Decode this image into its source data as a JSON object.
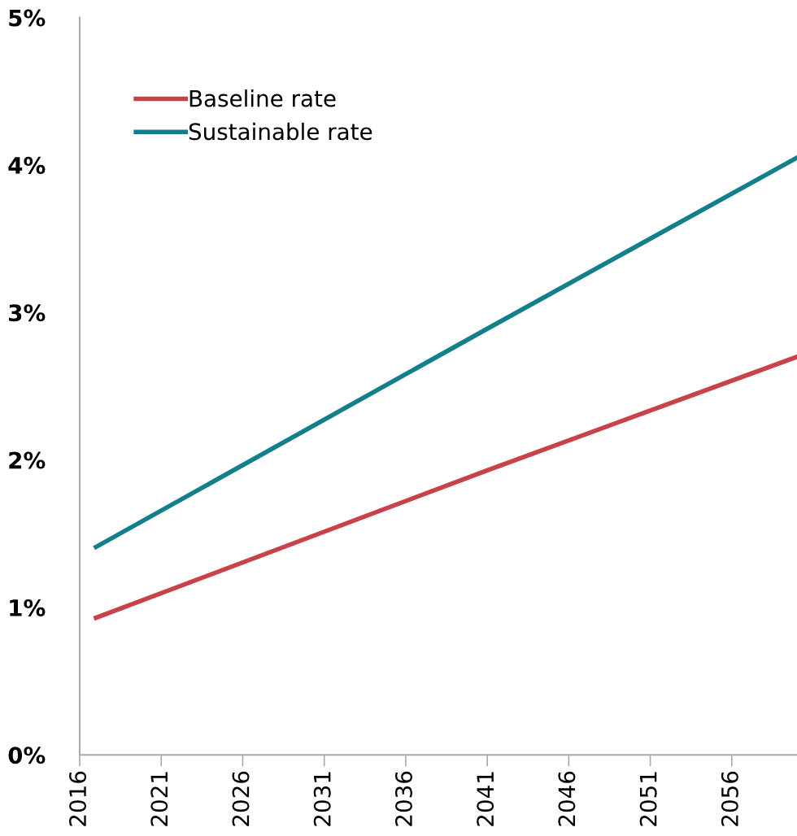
{
  "chart_data": {
    "type": "line",
    "series": [
      {
        "name": "Baseline rate",
        "color": "#c8424a",
        "x": [
          2017,
          2041,
          2060
        ],
        "values": [
          0.93,
          1.93,
          2.7
        ]
      },
      {
        "name": "Sustainable rate",
        "color": "#127f8a",
        "x": [
          2017,
          2041,
          2060
        ],
        "values": [
          1.41,
          2.89,
          4.05
        ]
      }
    ],
    "xlim": [
      2016,
      2060
    ],
    "xticks": [
      2016,
      2021,
      2026,
      2031,
      2036,
      2041,
      2046,
      2051,
      2056
    ],
    "ylim": [
      0,
      5
    ],
    "yticks": [
      {
        "value": 0,
        "label": "0%"
      },
      {
        "value": 1,
        "label": "1%"
      },
      {
        "value": 2,
        "label": "2%"
      },
      {
        "value": 3,
        "label": "3%"
      },
      {
        "value": 4,
        "label": "4%"
      },
      {
        "value": 5,
        "label": "5%"
      }
    ],
    "grid": false,
    "legend": "top left",
    "line_style": "solid",
    "marker": "none"
  }
}
